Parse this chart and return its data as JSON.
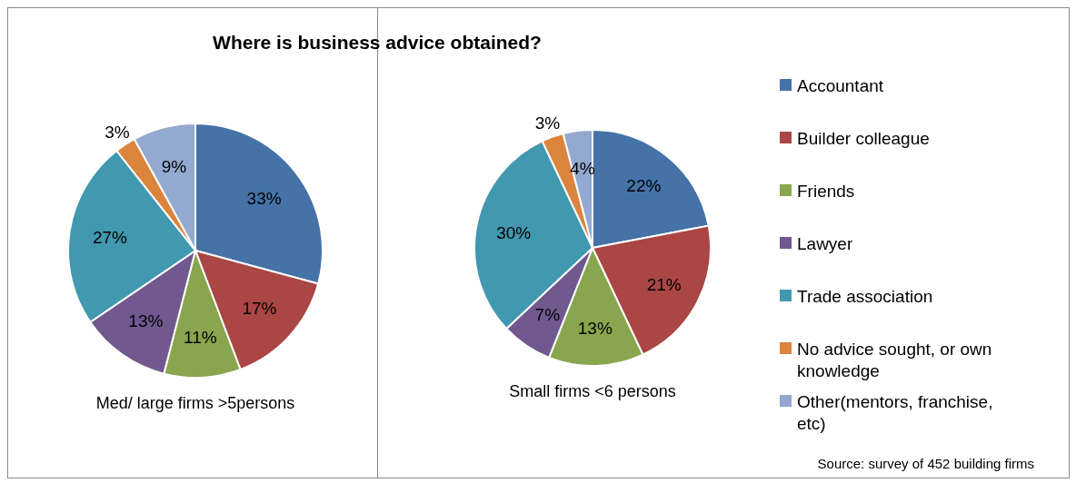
{
  "chart_data": [
    {
      "type": "pie",
      "title": "Where is business advice obtained?",
      "xlabel": "Med/ large firms >5persons",
      "categories": [
        null,
        null,
        null,
        null,
        null,
        null,
        null
      ],
      "values": [
        33,
        17,
        11,
        13,
        27,
        3,
        9
      ],
      "value_labels": [
        "33%",
        "17%",
        "11%",
        "13%",
        "27%",
        "3%",
        "9%"
      ],
      "colors": [
        "#4572a7",
        "#aa4643",
        "#89a54e",
        "#71588f",
        "#4198af",
        "#db843d",
        "#93a9cf"
      ]
    },
    {
      "type": "pie",
      "xlabel": "Small firms <6 persons",
      "categories": [
        "Accountant",
        "Builder colleague",
        "Friends",
        "Lawyer",
        "Trade association",
        "No advice sought, or own knowledge",
        "Other(mentors, franchise, etc)"
      ],
      "values": [
        22,
        21,
        13,
        7,
        30,
        3,
        4
      ],
      "value_labels": [
        "22%",
        "21%",
        "13%",
        "7%",
        "30%",
        "3%",
        "4%"
      ],
      "colors": [
        "#4572a7",
        "#aa4643",
        "#89a54e",
        "#71588f",
        "#4198af",
        "#db843d",
        "#93a9cf"
      ],
      "legend": "right",
      "annotations": [
        "Source: survey of 452 building firms"
      ]
    }
  ]
}
